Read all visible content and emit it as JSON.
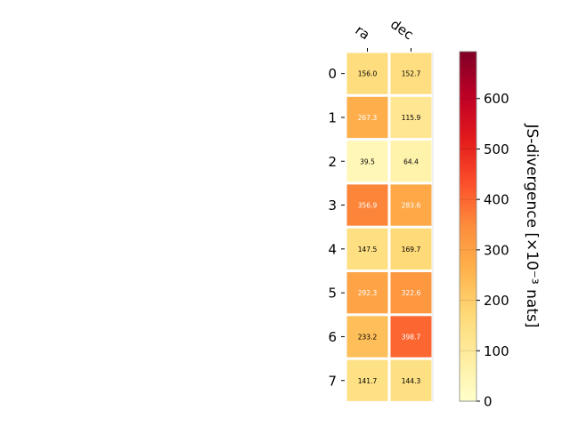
{
  "chart_data": {
    "type": "heatmap",
    "columns": [
      "ra",
      "dec"
    ],
    "rows": [
      "0",
      "1",
      "2",
      "3",
      "4",
      "5",
      "6",
      "7"
    ],
    "values": [
      [
        156.0,
        152.7
      ],
      [
        267.3,
        115.9
      ],
      [
        39.5,
        64.4
      ],
      [
        356.9,
        283.6
      ],
      [
        147.5,
        169.7
      ],
      [
        292.3,
        322.6
      ],
      [
        233.2,
        398.7
      ],
      [
        141.7,
        144.3
      ]
    ],
    "cell_labels": [
      [
        "156.0",
        "152.7"
      ],
      [
        "267.3",
        "115.9"
      ],
      [
        "39.5",
        "64.4"
      ],
      [
        "356.9",
        "283.6"
      ],
      [
        "147.5",
        "169.7"
      ],
      [
        "292.3",
        "322.6"
      ],
      [
        "233.2",
        "398.7"
      ],
      [
        "141.7",
        "144.3"
      ]
    ],
    "colorbar": {
      "label": "JS-divergence [×10⁻³ nats]",
      "range": [
        0,
        693
      ],
      "ticks": [
        0,
        100,
        200,
        300,
        400,
        500,
        600
      ],
      "tick_labels": [
        "0",
        "100",
        "200",
        "300",
        "400",
        "500",
        "600"
      ],
      "colormap": "YlOrRd"
    },
    "colors": {
      "text_dark": "#000000",
      "text_light": "#ffffff",
      "gridline": "#ffffff"
    }
  }
}
